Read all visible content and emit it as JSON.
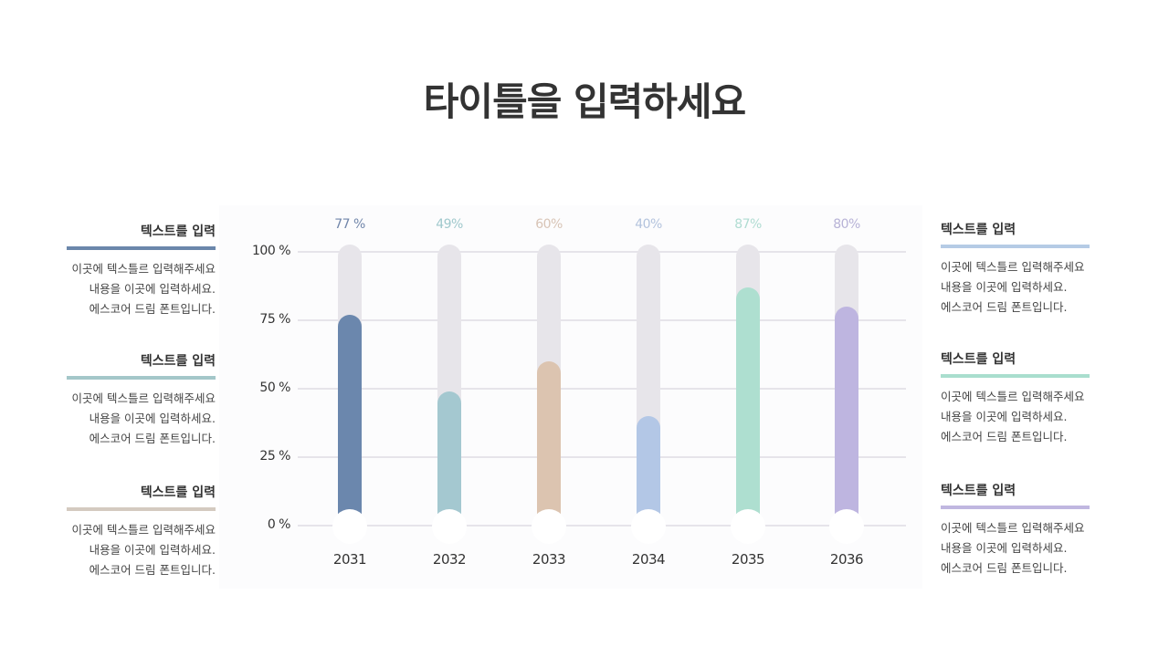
{
  "title": "타이틀을 입력하세요",
  "left_blocks": [
    {
      "heading": "텍스트를 입력",
      "color": "#6b87ab",
      "lines": [
        "이곳에 텍스틀르 입력해주세요",
        "내용을 이곳에 입력하세요.",
        "에스코어 드림 폰트입니다."
      ]
    },
    {
      "heading": "텍스트를 입력",
      "color": "#a4c7c9",
      "lines": [
        "이곳에 텍스틀르 입력해주세요",
        "내용을 이곳에 입력하세요.",
        "에스코어 드림 폰트입니다."
      ]
    },
    {
      "heading": "텍스트를 입력",
      "color": "#d4cac0",
      "lines": [
        "이곳에 텍스틀르 입력해주세요",
        "내용을 이곳에 입력하세요.",
        "에스코어 드림 폰트입니다."
      ]
    }
  ],
  "right_blocks": [
    {
      "heading": "텍스트를 입력",
      "color": "#b5cbe5",
      "lines": [
        "이곳에 텍스틀르 입력해주세요",
        "내용을 이곳에 입력하세요.",
        "에스코어 드림 폰트입니다."
      ]
    },
    {
      "heading": "텍스트를 입력",
      "color": "#a9dece",
      "lines": [
        "이곳에 텍스틀르 입력해주세요",
        "내용을 이곳에 입력하세요.",
        "에스코어 드림 폰트입니다."
      ]
    },
    {
      "heading": "텍스트를 입력",
      "color": "#c0b7e0",
      "lines": [
        "이곳에 텍스틀르 입력해주세요",
        "내용을 이곳에 입력하세요.",
        "에스코어 드림 폰트입니다."
      ]
    }
  ],
  "chart_data": {
    "type": "bar",
    "title": "",
    "xlabel": "",
    "ylabel": "",
    "ylim": [
      0,
      100
    ],
    "yticks": [
      "100 %",
      "75 %",
      "50 %",
      "25 %",
      "0 %"
    ],
    "grid": true,
    "categories": [
      "2031",
      "2032",
      "2033",
      "2034",
      "2035",
      "2036"
    ],
    "values": [
      77,
      49,
      60,
      40,
      87,
      80
    ],
    "value_labels": [
      "77 %",
      "49%",
      "60%",
      "40%",
      "87%",
      "80%"
    ],
    "colors": [
      "#6b87ad",
      "#a4c8d0",
      "#dcc4b0",
      "#b3c7e6",
      "#aedfd0",
      "#beb5e0"
    ],
    "label_colors": [
      "#7186aa",
      "#9fc8cc",
      "#d8c4b6",
      "#b3c3dd",
      "#b0dcd2",
      "#b7b2d6"
    ]
  }
}
